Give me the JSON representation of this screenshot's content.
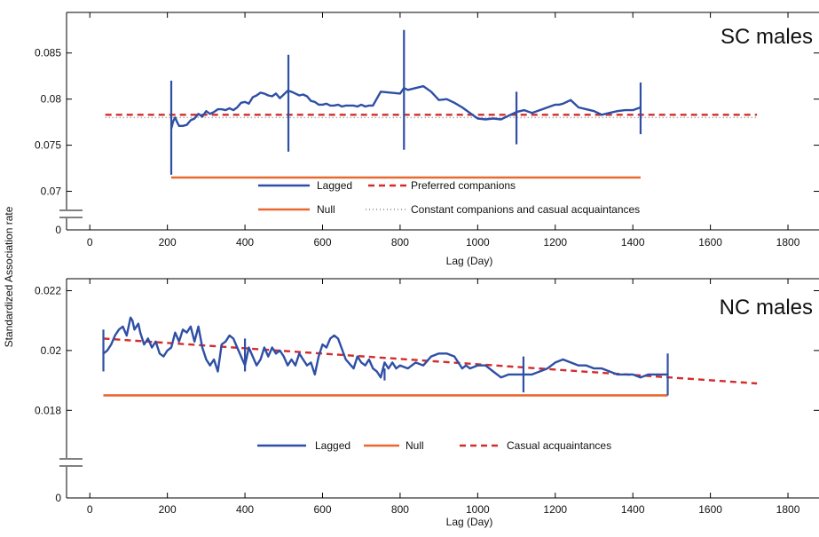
{
  "shared": {
    "ylabel": "Standardized Association rate"
  },
  "colors": {
    "lagged": "#2e4fa5",
    "null": "#e8692f",
    "model": "#d22c2c",
    "constant": "#888888"
  },
  "chart_data": [
    {
      "type": "line",
      "title": "SC males",
      "xlabel": "Lag (Day)",
      "xlim": [
        -60,
        1880
      ],
      "xticks": [
        0,
        200,
        400,
        600,
        800,
        1000,
        1200,
        1400,
        1600,
        1800
      ],
      "yticks": [
        0.07,
        0.075,
        0.08,
        0.085
      ],
      "ytick_labels": [
        "0.07",
        "0.075",
        "0.08",
        "0.085"
      ],
      "y_zero_label": "0",
      "axis_break": true,
      "series": [
        {
          "name": "Lagged",
          "style": "solid",
          "x": [
            210,
            215,
            220,
            225,
            230,
            240,
            250,
            260,
            270,
            280,
            290,
            300,
            310,
            320,
            330,
            340,
            350,
            360,
            370,
            380,
            390,
            400,
            410,
            420,
            430,
            440,
            450,
            460,
            470,
            480,
            490,
            500,
            510,
            520,
            530,
            540,
            550,
            560,
            570,
            580,
            590,
            600,
            610,
            620,
            630,
            640,
            650,
            660,
            670,
            680,
            690,
            700,
            710,
            720,
            730,
            750,
            800,
            810,
            820,
            860,
            880,
            900,
            920,
            940,
            960,
            1000,
            1020,
            1040,
            1060,
            1080,
            1100,
            1120,
            1140,
            1160,
            1180,
            1200,
            1210,
            1220,
            1240,
            1260,
            1280,
            1300,
            1320,
            1340,
            1360,
            1380,
            1400,
            1420
          ],
          "y": [
            0.0768,
            0.0776,
            0.078,
            0.0775,
            0.0771,
            0.0771,
            0.0772,
            0.0777,
            0.0779,
            0.0784,
            0.0781,
            0.0787,
            0.0784,
            0.0786,
            0.0789,
            0.0789,
            0.0788,
            0.079,
            0.0788,
            0.0791,
            0.0796,
            0.0797,
            0.0795,
            0.0802,
            0.0804,
            0.0807,
            0.0806,
            0.0804,
            0.0803,
            0.0806,
            0.0801,
            0.0805,
            0.0809,
            0.0808,
            0.0806,
            0.0804,
            0.0805,
            0.0803,
            0.0798,
            0.0797,
            0.0794,
            0.0794,
            0.0795,
            0.0793,
            0.0793,
            0.0794,
            0.0792,
            0.0793,
            0.0793,
            0.0793,
            0.0792,
            0.0794,
            0.0792,
            0.0793,
            0.0793,
            0.0808,
            0.0806,
            0.0812,
            0.081,
            0.0814,
            0.0808,
            0.0799,
            0.08,
            0.0796,
            0.0791,
            0.0779,
            0.0778,
            0.0779,
            0.0778,
            0.0782,
            0.0786,
            0.0788,
            0.0785,
            0.0788,
            0.0791,
            0.0794,
            0.0794,
            0.0795,
            0.0799,
            0.0791,
            0.0789,
            0.0787,
            0.0783,
            0.0785,
            0.0787,
            0.0788,
            0.0788,
            0.0791
          ]
        },
        {
          "name": "Null",
          "style": "solid",
          "x": [
            210,
            1420
          ],
          "y": [
            0.0715,
            0.0715
          ]
        },
        {
          "name": "Preferred companions",
          "style": "dashed",
          "x": [
            40,
            1720
          ],
          "y": [
            0.0783,
            0.0783
          ]
        },
        {
          "name": "Constant companions and casual acquaintances",
          "style": "dotted",
          "x": [
            40,
            1720
          ],
          "y": [
            0.078,
            0.078
          ]
        }
      ],
      "error_bars": [
        {
          "x": 210,
          "low": 0.0718,
          "high": 0.082
        },
        {
          "x": 512,
          "low": 0.0743,
          "high": 0.0848
        },
        {
          "x": 810,
          "low": 0.0745,
          "high": 0.0875
        },
        {
          "x": 1100,
          "low": 0.0751,
          "high": 0.0808
        },
        {
          "x": 1420,
          "low": 0.0762,
          "high": 0.0818
        }
      ],
      "legend": {
        "placement": "bottom-center",
        "items": [
          "Lagged",
          "Preferred companions",
          "Null",
          "Constant companions and casual acquaintances"
        ]
      }
    },
    {
      "type": "line",
      "title": "NC males",
      "xlabel": "Lag (Day)",
      "xlim": [
        -60,
        1880
      ],
      "xticks": [
        0,
        200,
        400,
        600,
        800,
        1000,
        1200,
        1400,
        1600,
        1800
      ],
      "yticks": [
        0.018,
        0.02,
        0.022
      ],
      "ytick_labels": [
        "0.018",
        "0.02",
        "0.022"
      ],
      "y_zero_label": "0",
      "axis_break": true,
      "series": [
        {
          "name": "Lagged",
          "style": "solid",
          "x": [
            35,
            45,
            55,
            65,
            75,
            85,
            95,
            105,
            110,
            115,
            125,
            130,
            140,
            150,
            160,
            170,
            180,
            190,
            200,
            210,
            220,
            230,
            240,
            250,
            260,
            270,
            280,
            290,
            300,
            310,
            320,
            330,
            340,
            350,
            360,
            370,
            380,
            390,
            400,
            410,
            420,
            430,
            440,
            450,
            460,
            470,
            480,
            490,
            500,
            510,
            520,
            530,
            540,
            550,
            560,
            570,
            580,
            590,
            600,
            610,
            620,
            630,
            640,
            660,
            680,
            690,
            700,
            710,
            720,
            730,
            740,
            750,
            760,
            770,
            780,
            790,
            800,
            820,
            840,
            860,
            880,
            900,
            920,
            940,
            960,
            970,
            980,
            1000,
            1020,
            1040,
            1060,
            1080,
            1100,
            1120,
            1140,
            1160,
            1180,
            1200,
            1220,
            1240,
            1260,
            1280,
            1300,
            1320,
            1340,
            1360,
            1380,
            1400,
            1420,
            1440,
            1460,
            1490
          ],
          "y": [
            0.0199,
            0.02,
            0.0202,
            0.0205,
            0.0207,
            0.0208,
            0.0205,
            0.0211,
            0.021,
            0.0207,
            0.0209,
            0.0206,
            0.0202,
            0.0204,
            0.0201,
            0.0203,
            0.0199,
            0.0198,
            0.02,
            0.0201,
            0.0206,
            0.0203,
            0.0207,
            0.0206,
            0.0208,
            0.0203,
            0.0208,
            0.0201,
            0.0197,
            0.0195,
            0.0197,
            0.0193,
            0.0202,
            0.0203,
            0.0205,
            0.0204,
            0.0201,
            0.0198,
            0.0195,
            0.0201,
            0.0198,
            0.0195,
            0.0197,
            0.0201,
            0.0198,
            0.0201,
            0.0199,
            0.02,
            0.0198,
            0.0195,
            0.0197,
            0.0195,
            0.0199,
            0.0197,
            0.0195,
            0.0196,
            0.0192,
            0.0198,
            0.0202,
            0.0201,
            0.0204,
            0.0205,
            0.0204,
            0.0197,
            0.0194,
            0.0198,
            0.0196,
            0.0195,
            0.0197,
            0.0194,
            0.0193,
            0.0191,
            0.0196,
            0.0194,
            0.0196,
            0.0194,
            0.0195,
            0.0194,
            0.0196,
            0.0195,
            0.0198,
            0.0199,
            0.0199,
            0.0198,
            0.0194,
            0.0195,
            0.0194,
            0.0195,
            0.0195,
            0.0193,
            0.0191,
            0.0192,
            0.0192,
            0.0192,
            0.0192,
            0.0193,
            0.0194,
            0.0196,
            0.0197,
            0.0196,
            0.0195,
            0.0195,
            0.0194,
            0.0194,
            0.0193,
            0.0192,
            0.0192,
            0.0192,
            0.0191,
            0.0192,
            0.0192,
            0.0192
          ]
        },
        {
          "name": "Null",
          "style": "solid",
          "x": [
            35,
            1490
          ],
          "y": [
            0.0185,
            0.0185
          ]
        },
        {
          "name": "Casual acquaintances",
          "style": "dashed",
          "x": [
            35,
            1720
          ],
          "y": [
            0.0204,
            0.0189
          ]
        }
      ],
      "error_bars": [
        {
          "x": 35,
          "low": 0.0193,
          "high": 0.0207
        },
        {
          "x": 400,
          "low": 0.0193,
          "high": 0.0204
        },
        {
          "x": 760,
          "low": 0.019,
          "high": 0.0194
        },
        {
          "x": 1118,
          "low": 0.0186,
          "high": 0.0198
        },
        {
          "x": 1490,
          "low": 0.0185,
          "high": 0.0199
        }
      ],
      "legend": {
        "placement": "bottom-center",
        "items": [
          "Lagged",
          "Null",
          "Casual acquaintances"
        ]
      }
    }
  ]
}
